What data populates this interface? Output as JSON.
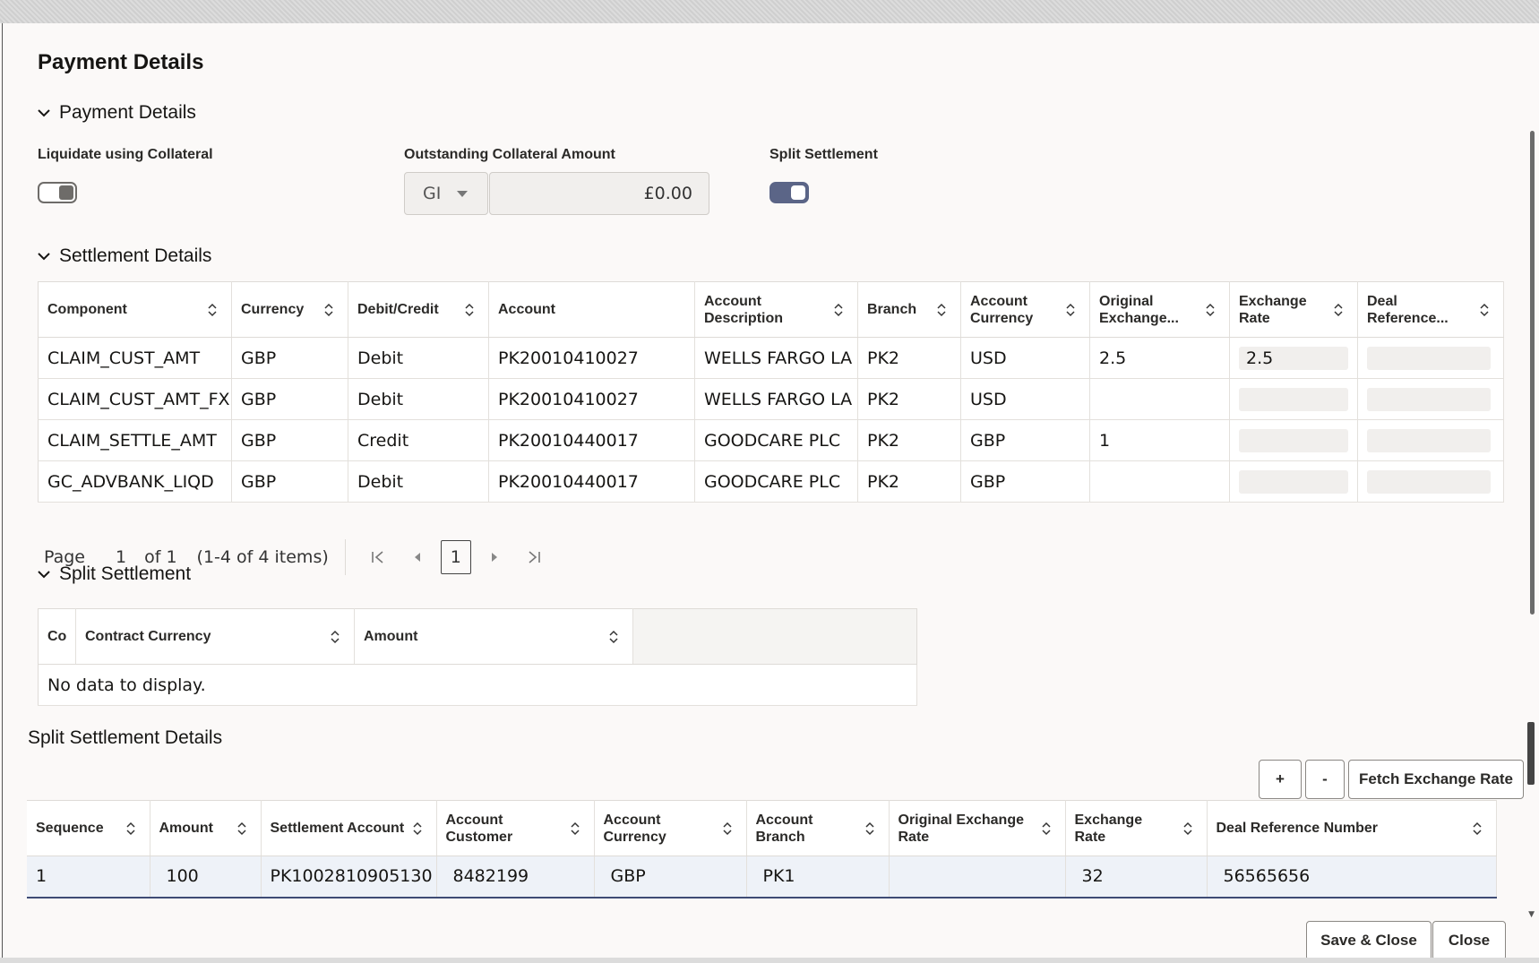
{
  "dialog": {
    "title": "Payment Details"
  },
  "payment_section": {
    "heading": "Payment Details",
    "liquidate_label": "Liquidate using Collateral",
    "liquidate_on": false,
    "outstanding_label": "Outstanding Collateral Amount",
    "currency_value": "GI",
    "amount_value": "£0.00",
    "split_label": "Split Settlement",
    "split_on": true
  },
  "settlement_section": {
    "heading": "Settlement Details",
    "columns": [
      "Component",
      "Currency",
      "Debit/Credit",
      "Account",
      "Account Description",
      "Branch",
      "Account Currency",
      "Original Exchange...",
      "Exchange Rate",
      "Deal Reference..."
    ],
    "rows": [
      [
        "CLAIM_CUST_AMT",
        "GBP",
        "Debit",
        "PK20010410027",
        "WELLS FARGO LA",
        "PK2",
        "USD",
        "2.5",
        "2.5",
        ""
      ],
      [
        "CLAIM_CUST_AMT_FX",
        "GBP",
        "Debit",
        "PK20010410027",
        "WELLS FARGO LA",
        "PK2",
        "USD",
        "",
        "",
        ""
      ],
      [
        "CLAIM_SETTLE_AMT",
        "GBP",
        "Credit",
        "PK20010440017",
        "GOODCARE PLC",
        "PK2",
        "GBP",
        "1",
        "",
        ""
      ],
      [
        "GC_ADVBANK_LIQD",
        "GBP",
        "Debit",
        "PK20010440017",
        "GOODCARE PLC",
        "PK2",
        "GBP",
        "",
        "",
        ""
      ]
    ],
    "pager": {
      "page_label": "Page",
      "page": "1",
      "of": "of 1",
      "items": "(1-4 of 4 items)",
      "current": "1"
    }
  },
  "split_section": {
    "heading": "Split Settlement",
    "columns": [
      "Co",
      "Contract Currency",
      "Amount"
    ],
    "empty_text": "No data to display."
  },
  "split_details": {
    "heading": "Split Settlement Details",
    "add_label": "+",
    "remove_label": "-",
    "fetch_label": "Fetch Exchange Rate",
    "columns": [
      "Sequence",
      "Amount",
      "Settlement Account",
      "Account Customer",
      "Account Currency",
      "Account Branch",
      "Original Exchange Rate",
      "Exchange Rate",
      "Deal Reference Number"
    ],
    "rows": [
      [
        "1",
        "100",
        "PK1002810905130",
        "8482199",
        "GBP",
        "PK1",
        "",
        "32",
        "56565656"
      ]
    ]
  },
  "footer": {
    "save_close_label": "Save & Close",
    "close_label": "Close"
  }
}
